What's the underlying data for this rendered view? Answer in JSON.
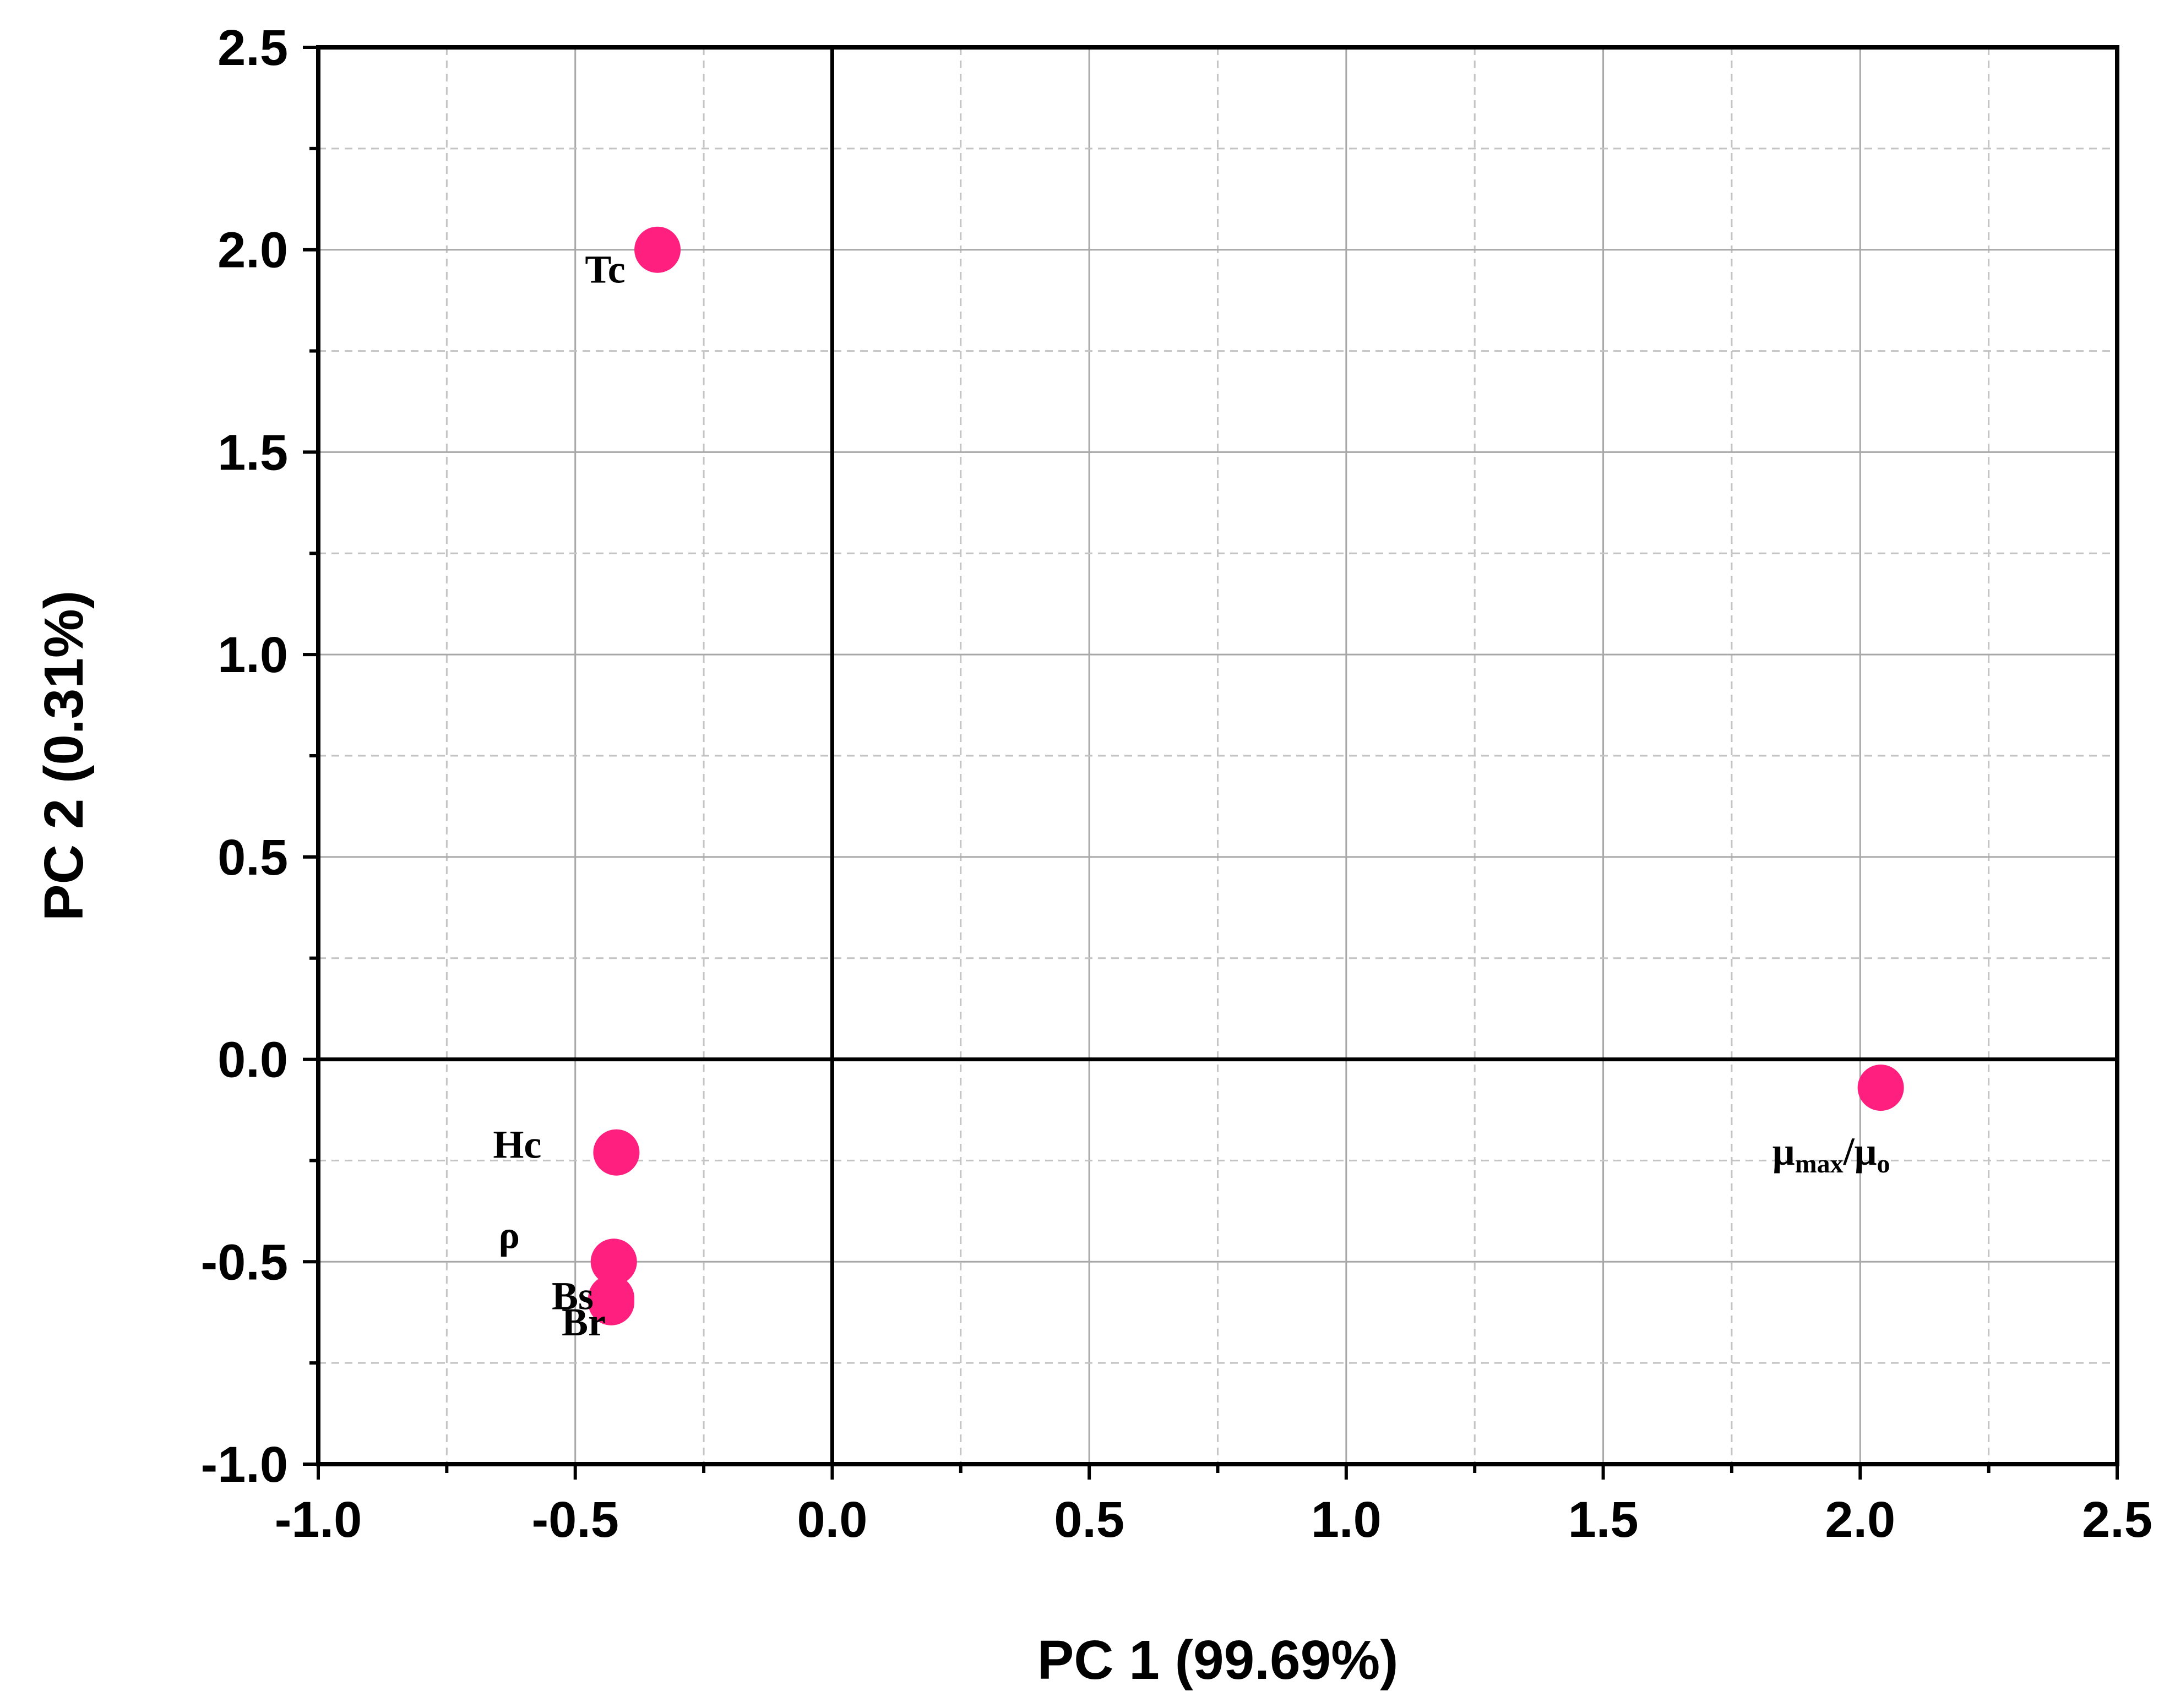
{
  "chart_data": {
    "type": "scatter",
    "title": "",
    "xlabel": "PC 1 (99.69%)",
    "ylabel": "PC 2 (0.31%)",
    "xlim": [
      -1.0,
      2.5
    ],
    "ylim": [
      -1.0,
      2.5
    ],
    "x_ticks": [
      "-1.0",
      "-0.5",
      "0.0",
      "0.5",
      "1.0",
      "1.5",
      "2.0",
      "2.5"
    ],
    "y_ticks": [
      "-1.0",
      "-0.5",
      "0.0",
      "0.5",
      "1.0",
      "1.5",
      "2.0",
      "2.5"
    ],
    "grid": true,
    "marker_color": "#ff1f7f",
    "points": [
      {
        "label": "Tc",
        "x": -0.34,
        "y": 2.0
      },
      {
        "label": "Hc",
        "x": -0.42,
        "y": -0.23
      },
      {
        "label": "ρ",
        "x": -0.425,
        "y": -0.5
      },
      {
        "label": "Bs",
        "x": -0.43,
        "y": -0.59
      },
      {
        "label": "Br",
        "x": -0.43,
        "y": -0.6
      },
      {
        "label": "μmax/μo",
        "label_base": "μ",
        "label_sub1": "max",
        "label_mid": "/μ",
        "label_sub2": "o",
        "x": 2.04,
        "y": -0.07
      }
    ]
  }
}
